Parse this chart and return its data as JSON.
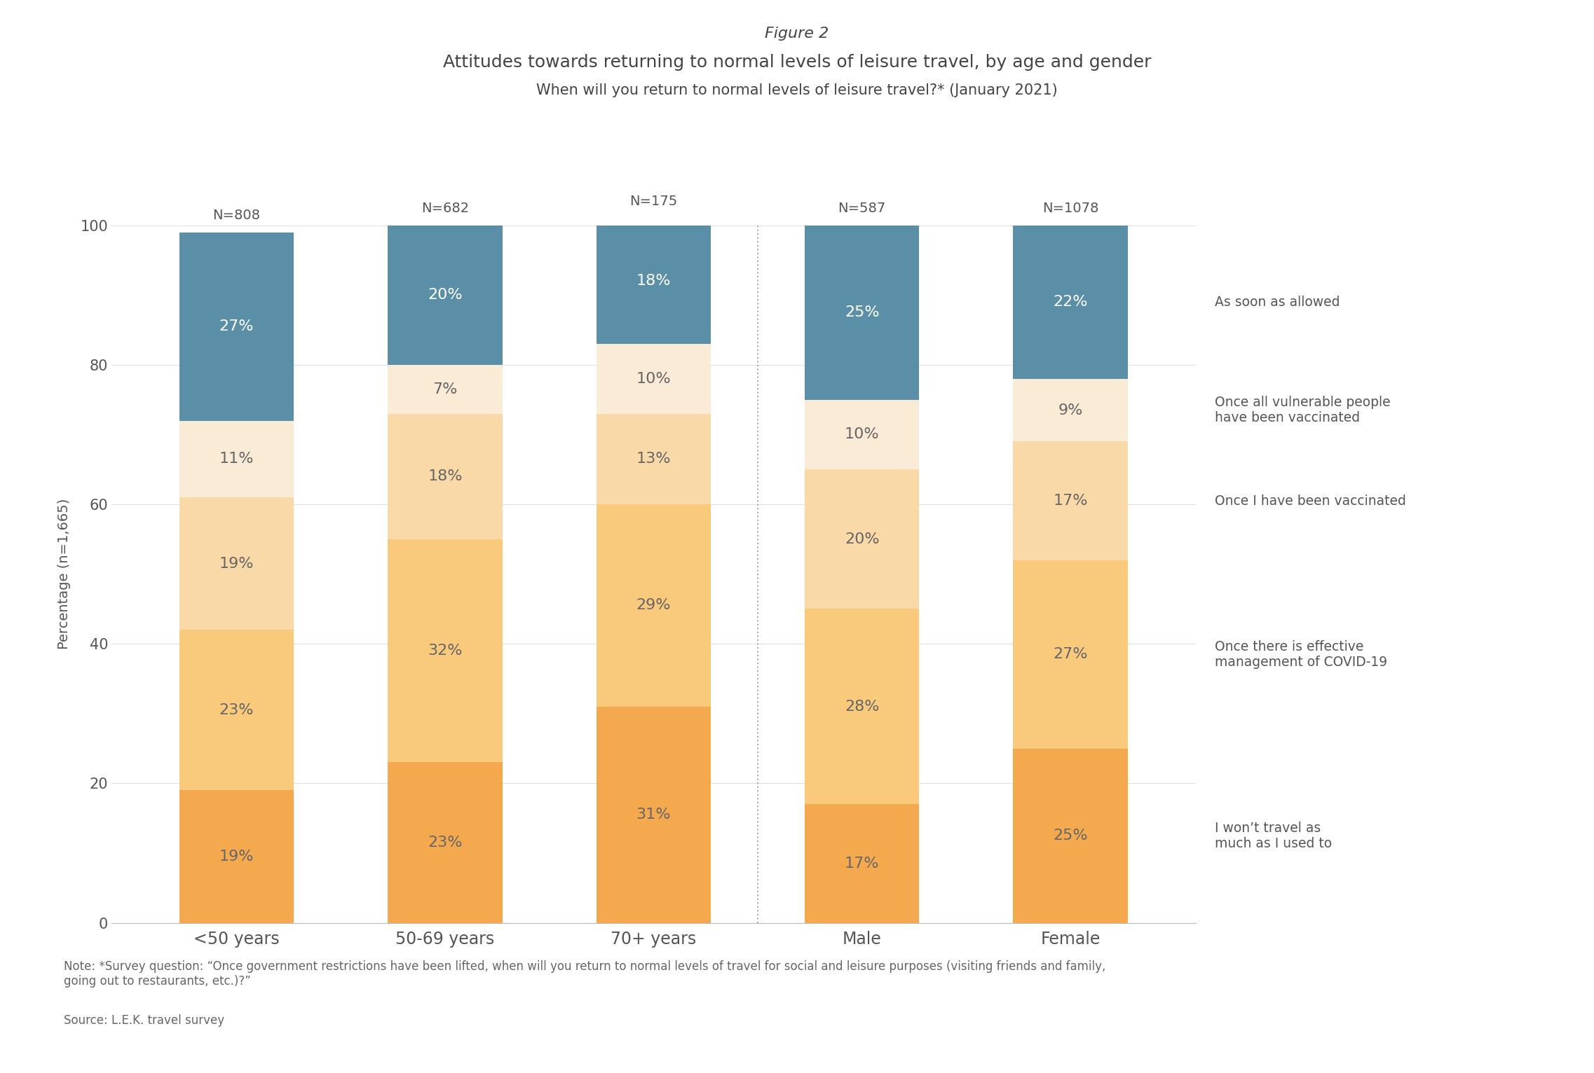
{
  "title_line1": "Figure 2",
  "title_line2": "Attitudes towards returning to normal levels of leisure travel, by age and gender",
  "subtitle": "When will you return to normal levels of leisure travel?* (January 2021)",
  "categories": [
    "<50 years",
    "50-69 years",
    "70+ years",
    "Male",
    "Female"
  ],
  "n_labels": [
    "N=808",
    "N=682",
    "N=175",
    "N=587",
    "N=1078"
  ],
  "series": [
    {
      "name": "I won’t travel as\nmuch as I used to",
      "values": [
        19,
        23,
        31,
        17,
        25
      ],
      "color": "#F5A94E"
    },
    {
      "name": "Once there is effective\nmanagement of COVID-19",
      "values": [
        23,
        32,
        29,
        28,
        27
      ],
      "color": "#F9C97C"
    },
    {
      "name": "Once I have been vaccinated",
      "values": [
        19,
        18,
        13,
        20,
        17
      ],
      "color": "#FAD9A8"
    },
    {
      "name": "Once all vulnerable people\nhave been vaccinated",
      "values": [
        11,
        7,
        10,
        10,
        9
      ],
      "color": "#FAEBD7"
    },
    {
      "name": "As soon as allowed",
      "values": [
        27,
        20,
        18,
        25,
        22
      ],
      "color": "#5B8FA8"
    }
  ],
  "ylabel": "Percentage (n=1,665)",
  "ylim": [
    0,
    100
  ],
  "yticks": [
    0,
    20,
    40,
    60,
    80,
    100
  ],
  "bar_width": 0.55,
  "separator_after_index": 2,
  "background_color": "#FFFFFF",
  "note": "Note: *Survey question: “Once government restrictions have been lifted, when will you return to normal levels of travel for social and leisure purposes (visiting friends and family,\ngoing out to restaurants, etc.)?”",
  "source": "Source: L.E.K. travel survey",
  "text_color": "#555555",
  "bar_label_color_dark": "#666666",
  "bar_label_color_light": "#FFFFFF"
}
